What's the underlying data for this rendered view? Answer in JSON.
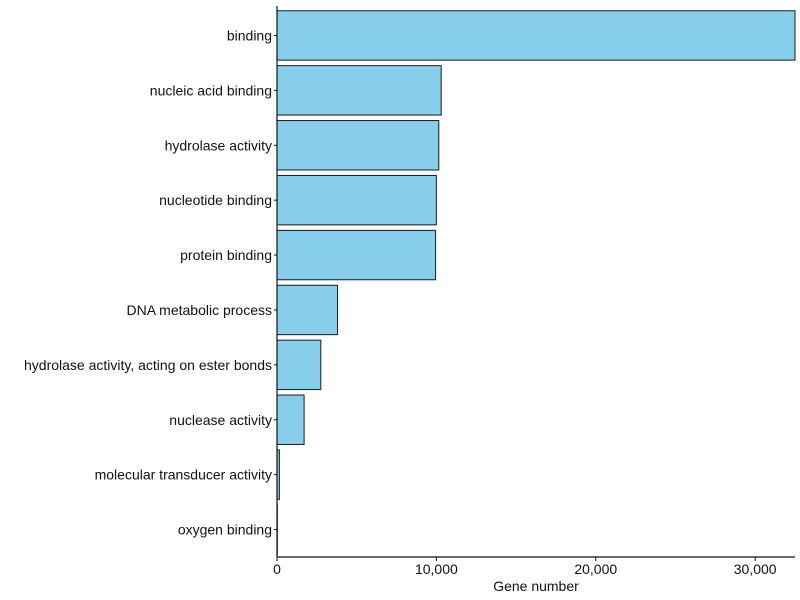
{
  "chart_data": {
    "type": "bar",
    "orientation": "horizontal",
    "title": "",
    "xlabel": "Gene number",
    "ylabel": "",
    "xlim": [
      0,
      32500
    ],
    "x_ticks": [
      0,
      10000,
      20000,
      30000
    ],
    "x_tick_labels": [
      "0",
      "10,000",
      "20,000",
      "30,000"
    ],
    "categories": [
      "binding",
      "nucleic acid binding",
      "hydrolase activity",
      "nucleotide binding",
      "protein binding",
      "DNA metabolic process",
      "hydrolase activity, acting on ester bonds",
      "nuclease activity",
      "molecular transducer activity",
      "oxygen binding"
    ],
    "values": [
      32500,
      10300,
      10150,
      10000,
      9950,
      3800,
      2750,
      1700,
      150,
      20
    ],
    "grid": false,
    "legend": "none",
    "colors": {
      "bar_fill": "#87CEEB",
      "bar_stroke": "#1a1a1a",
      "axis": "#111111",
      "text": "#111111",
      "background": "#ffffff"
    }
  }
}
